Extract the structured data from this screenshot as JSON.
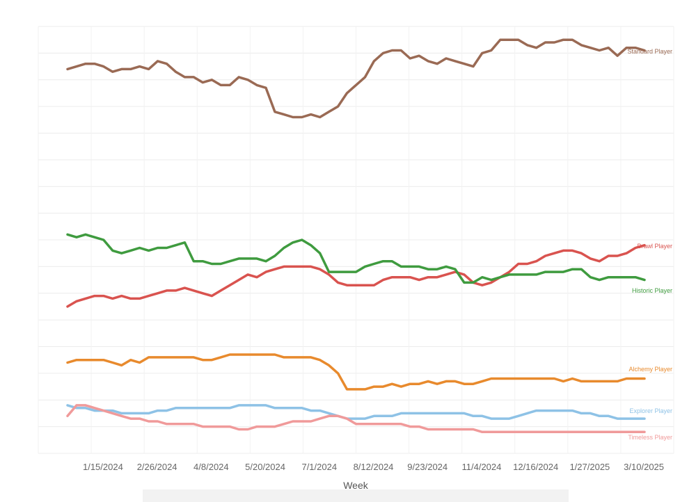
{
  "chart_data": {
    "type": "line",
    "title": "",
    "xlabel": "Week",
    "ylabel": "",
    "grid": true,
    "ylim": [
      0,
      160
    ],
    "x_ticks": [
      "1/15/2024",
      "2/26/2024",
      "4/8/2024",
      "5/20/2024",
      "7/1/2024",
      "8/12/2024",
      "9/23/2024",
      "11/4/2024",
      "12/16/2024",
      "1/27/2025",
      "3/10/2025"
    ],
    "x_tick_index": [
      2,
      8,
      14,
      20,
      26,
      32,
      38,
      44,
      50,
      56,
      62
    ],
    "series": [
      {
        "name": "Standard Player",
        "color": "#9a6a54",
        "values": [
          144,
          145,
          146,
          146,
          145,
          143,
          144,
          144,
          145,
          144,
          147,
          146,
          143,
          141,
          141,
          139,
          140,
          138,
          138,
          141,
          140,
          138,
          137,
          128,
          127,
          126,
          126,
          127,
          126,
          128,
          130,
          135,
          138,
          141,
          147,
          150,
          151,
          151,
          148,
          149,
          147,
          146,
          148,
          147,
          146,
          145,
          150,
          151,
          155,
          155,
          155,
          153,
          152,
          154,
          154,
          155,
          155,
          153,
          152,
          151,
          152,
          149,
          152,
          152,
          151
        ]
      },
      {
        "name": "Brawl Player",
        "color": "#d9534f",
        "values": [
          55,
          57,
          58,
          59,
          59,
          58,
          59,
          58,
          58,
          59,
          60,
          61,
          61,
          62,
          61,
          60,
          59,
          61,
          63,
          65,
          67,
          66,
          68,
          69,
          70,
          70,
          70,
          70,
          69,
          67,
          64,
          63,
          63,
          63,
          63,
          65,
          66,
          66,
          66,
          65,
          66,
          66,
          67,
          68,
          67,
          64,
          63,
          64,
          66,
          68,
          71,
          71,
          72,
          74,
          75,
          76,
          76,
          75,
          73,
          72,
          74,
          74,
          75,
          77,
          78
        ]
      },
      {
        "name": "Historic Player",
        "color": "#3f9b3f",
        "values": [
          82,
          81,
          82,
          81,
          80,
          76,
          75,
          76,
          77,
          76,
          77,
          77,
          78,
          79,
          72,
          72,
          71,
          71,
          72,
          73,
          73,
          73,
          72,
          74,
          77,
          79,
          80,
          78,
          75,
          68,
          68,
          68,
          68,
          70,
          71,
          72,
          72,
          70,
          70,
          70,
          69,
          69,
          70,
          69,
          64,
          64,
          66,
          65,
          66,
          67,
          67,
          67,
          67,
          68,
          68,
          68,
          69,
          69,
          66,
          65,
          66,
          66,
          66,
          66,
          65
        ]
      },
      {
        "name": "Alchemy Player",
        "color": "#e88a2d",
        "values": [
          34,
          35,
          35,
          35,
          35,
          34,
          33,
          35,
          34,
          36,
          36,
          36,
          36,
          36,
          36,
          35,
          35,
          36,
          37,
          37,
          37,
          37,
          37,
          37,
          36,
          36,
          36,
          36,
          35,
          33,
          30,
          24,
          24,
          24,
          25,
          25,
          26,
          25,
          26,
          26,
          27,
          26,
          27,
          27,
          26,
          26,
          27,
          28,
          28,
          28,
          28,
          28,
          28,
          28,
          28,
          27,
          28,
          27,
          27,
          27,
          27,
          27,
          28,
          28,
          28
        ]
      },
      {
        "name": "Explorer Player",
        "color": "#8ec2e6",
        "values": [
          18,
          17,
          17,
          16,
          16,
          16,
          15,
          15,
          15,
          15,
          16,
          16,
          17,
          17,
          17,
          17,
          17,
          17,
          17,
          18,
          18,
          18,
          18,
          17,
          17,
          17,
          17,
          16,
          16,
          15,
          14,
          13,
          13,
          13,
          14,
          14,
          14,
          15,
          15,
          15,
          15,
          15,
          15,
          15,
          15,
          14,
          14,
          13,
          13,
          13,
          14,
          15,
          16,
          16,
          16,
          16,
          16,
          15,
          15,
          14,
          14,
          13,
          13,
          13,
          13
        ]
      },
      {
        "name": "Timeless Player",
        "color": "#f09a9a",
        "values": [
          14,
          18,
          18,
          17,
          16,
          15,
          14,
          13,
          13,
          12,
          12,
          11,
          11,
          11,
          11,
          10,
          10,
          10,
          10,
          9,
          9,
          10,
          10,
          10,
          11,
          12,
          12,
          12,
          13,
          14,
          14,
          13,
          11,
          11,
          11,
          11,
          11,
          11,
          10,
          10,
          9,
          9,
          9,
          9,
          9,
          9,
          8,
          8,
          8,
          8,
          8,
          8,
          8,
          8,
          8,
          8,
          8,
          8,
          8,
          8,
          8,
          8,
          8,
          8,
          8
        ]
      }
    ]
  }
}
